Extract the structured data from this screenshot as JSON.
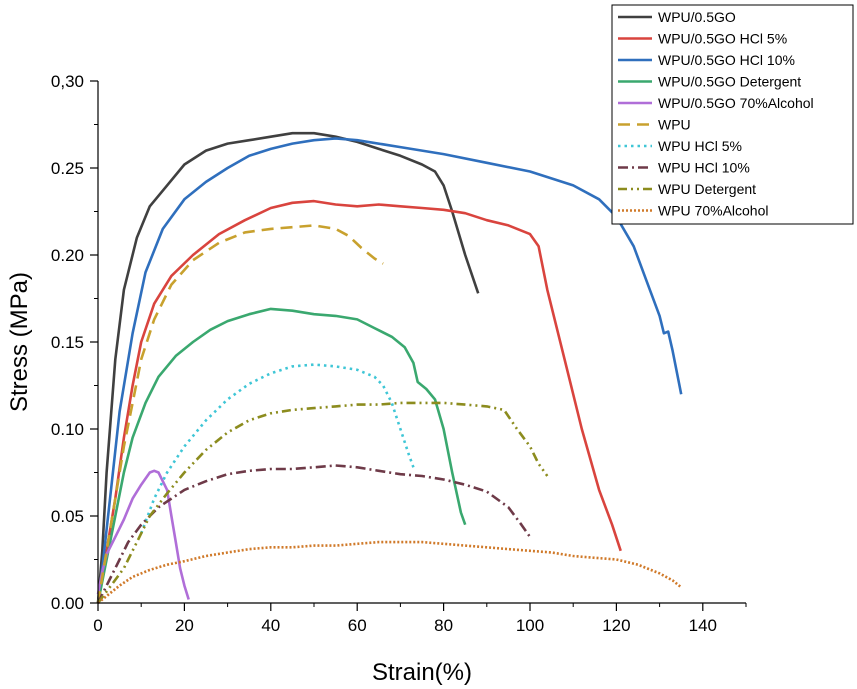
{
  "chart_data": {
    "type": "line",
    "xlabel": "Strain(%)",
    "ylabel": "Stress (MPa)",
    "xlim": [
      0,
      150
    ],
    "ylim": [
      0,
      0.3
    ],
    "xticks": [
      {
        "value": 0,
        "label": "0"
      },
      {
        "value": 20,
        "label": "20"
      },
      {
        "value": 40,
        "label": "40"
      },
      {
        "value": 60,
        "label": "60"
      },
      {
        "value": 80,
        "label": "80"
      },
      {
        "value": 100,
        "label": "100"
      },
      {
        "value": 120,
        "label": "120"
      },
      {
        "value": 140,
        "label": "140"
      }
    ],
    "yticks": [
      {
        "value": 0,
        "label": "0.00"
      },
      {
        "value": 0.05,
        "label": "0.05"
      },
      {
        "value": 0.1,
        "label": "0.10"
      },
      {
        "value": 0.15,
        "label": "0.15"
      },
      {
        "value": 0.2,
        "label": "0.20"
      },
      {
        "value": 0.25,
        "label": "0.25"
      },
      {
        "value": 0.3,
        "label": "0,30"
      }
    ],
    "grid": false,
    "legend_position": "top-right",
    "series": [
      {
        "name": "WPU/0.5GO",
        "color": "#404040",
        "dash": "solid",
        "points": [
          [
            0,
            0
          ],
          [
            1,
            0.03
          ],
          [
            2,
            0.075
          ],
          [
            4,
            0.14
          ],
          [
            6,
            0.18
          ],
          [
            9,
            0.21
          ],
          [
            12,
            0.228
          ],
          [
            16,
            0.24
          ],
          [
            20,
            0.252
          ],
          [
            25,
            0.26
          ],
          [
            30,
            0.264
          ],
          [
            35,
            0.266
          ],
          [
            40,
            0.268
          ],
          [
            45,
            0.27
          ],
          [
            50,
            0.27
          ],
          [
            55,
            0.268
          ],
          [
            60,
            0.265
          ],
          [
            65,
            0.261
          ],
          [
            70,
            0.257
          ],
          [
            75,
            0.252
          ],
          [
            78,
            0.248
          ],
          [
            80,
            0.24
          ],
          [
            82,
            0.225
          ],
          [
            85,
            0.2
          ],
          [
            88,
            0.178
          ]
        ]
      },
      {
        "name": "WPU/0.5GO HCl 5%",
        "color": "#d9443e",
        "dash": "solid",
        "points": [
          [
            0,
            0
          ],
          [
            2,
            0.03
          ],
          [
            4,
            0.06
          ],
          [
            6,
            0.095
          ],
          [
            8,
            0.125
          ],
          [
            10,
            0.15
          ],
          [
            13,
            0.172
          ],
          [
            17,
            0.188
          ],
          [
            22,
            0.2
          ],
          [
            28,
            0.212
          ],
          [
            34,
            0.22
          ],
          [
            40,
            0.227
          ],
          [
            45,
            0.23
          ],
          [
            50,
            0.231
          ],
          [
            55,
            0.229
          ],
          [
            60,
            0.228
          ],
          [
            65,
            0.229
          ],
          [
            70,
            0.228
          ],
          [
            75,
            0.227
          ],
          [
            80,
            0.226
          ],
          [
            85,
            0.224
          ],
          [
            90,
            0.22
          ],
          [
            95,
            0.217
          ],
          [
            100,
            0.212
          ],
          [
            102,
            0.205
          ],
          [
            104,
            0.18
          ],
          [
            108,
            0.14
          ],
          [
            112,
            0.1
          ],
          [
            116,
            0.065
          ],
          [
            119,
            0.045
          ],
          [
            121,
            0.03
          ]
        ]
      },
      {
        "name": "WPU/0.5GO HCl 10%",
        "color": "#2f6fbd",
        "dash": "solid",
        "points": [
          [
            0,
            0
          ],
          [
            1,
            0.02
          ],
          [
            3,
            0.065
          ],
          [
            5,
            0.11
          ],
          [
            8,
            0.155
          ],
          [
            11,
            0.19
          ],
          [
            15,
            0.215
          ],
          [
            20,
            0.232
          ],
          [
            25,
            0.242
          ],
          [
            30,
            0.25
          ],
          [
            35,
            0.257
          ],
          [
            40,
            0.261
          ],
          [
            45,
            0.264
          ],
          [
            50,
            0.266
          ],
          [
            55,
            0.267
          ],
          [
            60,
            0.266
          ],
          [
            70,
            0.262
          ],
          [
            80,
            0.258
          ],
          [
            90,
            0.253
          ],
          [
            100,
            0.248
          ],
          [
            110,
            0.24
          ],
          [
            116,
            0.232
          ],
          [
            120,
            0.222
          ],
          [
            124,
            0.205
          ],
          [
            127,
            0.185
          ],
          [
            130,
            0.165
          ],
          [
            131,
            0.155
          ],
          [
            132,
            0.156
          ],
          [
            133,
            0.145
          ],
          [
            135,
            0.12
          ]
        ]
      },
      {
        "name": "WPU/0.5GO Detergent",
        "color": "#3aa86f",
        "dash": "solid",
        "points": [
          [
            0,
            0
          ],
          [
            2,
            0.025
          ],
          [
            4,
            0.05
          ],
          [
            6,
            0.075
          ],
          [
            8,
            0.095
          ],
          [
            11,
            0.115
          ],
          [
            14,
            0.13
          ],
          [
            18,
            0.142
          ],
          [
            22,
            0.15
          ],
          [
            26,
            0.157
          ],
          [
            30,
            0.162
          ],
          [
            35,
            0.166
          ],
          [
            40,
            0.169
          ],
          [
            45,
            0.168
          ],
          [
            50,
            0.166
          ],
          [
            55,
            0.165
          ],
          [
            60,
            0.163
          ],
          [
            64,
            0.158
          ],
          [
            68,
            0.153
          ],
          [
            71,
            0.147
          ],
          [
            73,
            0.138
          ],
          [
            74,
            0.127
          ],
          [
            76,
            0.123
          ],
          [
            78,
            0.117
          ],
          [
            80,
            0.1
          ],
          [
            82,
            0.075
          ],
          [
            84,
            0.052
          ],
          [
            85,
            0.045
          ]
        ]
      },
      {
        "name": "WPU/0.5GO 70%Alcohol",
        "color": "#b06ed8",
        "dash": "solid",
        "points": [
          [
            0,
            0.005
          ],
          [
            1,
            0.018
          ],
          [
            2,
            0.028
          ],
          [
            4,
            0.038
          ],
          [
            6,
            0.048
          ],
          [
            8,
            0.06
          ],
          [
            10,
            0.068
          ],
          [
            12,
            0.075
          ],
          [
            13,
            0.076
          ],
          [
            14,
            0.075
          ],
          [
            16,
            0.065
          ],
          [
            17,
            0.05
          ],
          [
            18,
            0.035
          ],
          [
            19,
            0.02
          ],
          [
            20,
            0.01
          ],
          [
            21,
            0.002
          ]
        ]
      },
      {
        "name": "WPU",
        "color": "#c8a12e",
        "dash": "long",
        "points": [
          [
            0,
            0
          ],
          [
            2,
            0.03
          ],
          [
            4,
            0.06
          ],
          [
            6,
            0.09
          ],
          [
            8,
            0.115
          ],
          [
            10,
            0.14
          ],
          [
            13,
            0.163
          ],
          [
            17,
            0.183
          ],
          [
            22,
            0.197
          ],
          [
            28,
            0.207
          ],
          [
            34,
            0.213
          ],
          [
            40,
            0.215
          ],
          [
            45,
            0.216
          ],
          [
            50,
            0.217
          ],
          [
            55,
            0.215
          ],
          [
            58,
            0.211
          ],
          [
            61,
            0.204
          ],
          [
            64,
            0.198
          ],
          [
            66,
            0.195
          ]
        ]
      },
      {
        "name": "WPU HCl 5%",
        "color": "#3fc6d6",
        "dash": "dot",
        "points": [
          [
            10,
            0.04
          ],
          [
            13,
            0.06
          ],
          [
            16,
            0.075
          ],
          [
            20,
            0.09
          ],
          [
            25,
            0.105
          ],
          [
            30,
            0.117
          ],
          [
            35,
            0.126
          ],
          [
            40,
            0.132
          ],
          [
            45,
            0.136
          ],
          [
            50,
            0.137
          ],
          [
            55,
            0.136
          ],
          [
            60,
            0.134
          ],
          [
            64,
            0.13
          ],
          [
            66,
            0.125
          ],
          [
            68,
            0.115
          ],
          [
            70,
            0.1
          ],
          [
            72,
            0.085
          ],
          [
            73,
            0.078
          ]
        ]
      },
      {
        "name": "WPU HCl 10%",
        "color": "#6e3a48",
        "dash": "dashdot",
        "points": [
          [
            0,
            0
          ],
          [
            2,
            0.01
          ],
          [
            4,
            0.02
          ],
          [
            7,
            0.035
          ],
          [
            10,
            0.045
          ],
          [
            14,
            0.055
          ],
          [
            20,
            0.065
          ],
          [
            25,
            0.07
          ],
          [
            30,
            0.074
          ],
          [
            35,
            0.076
          ],
          [
            40,
            0.077
          ],
          [
            45,
            0.077
          ],
          [
            50,
            0.078
          ],
          [
            55,
            0.079
          ],
          [
            60,
            0.078
          ],
          [
            65,
            0.076
          ],
          [
            70,
            0.074
          ],
          [
            75,
            0.073
          ],
          [
            80,
            0.071
          ],
          [
            85,
            0.068
          ],
          [
            90,
            0.064
          ],
          [
            95,
            0.055
          ],
          [
            98,
            0.045
          ],
          [
            100,
            0.038
          ]
        ]
      },
      {
        "name": "WPU Detergent",
        "color": "#8c8c1e",
        "dash": "dashdotdot",
        "points": [
          [
            0,
            0
          ],
          [
            3,
            0.01
          ],
          [
            6,
            0.02
          ],
          [
            9,
            0.035
          ],
          [
            12,
            0.05
          ],
          [
            16,
            0.063
          ],
          [
            20,
            0.075
          ],
          [
            25,
            0.088
          ],
          [
            30,
            0.098
          ],
          [
            35,
            0.105
          ],
          [
            40,
            0.109
          ],
          [
            45,
            0.111
          ],
          [
            50,
            0.112
          ],
          [
            55,
            0.113
          ],
          [
            60,
            0.114
          ],
          [
            65,
            0.114
          ],
          [
            70,
            0.115
          ],
          [
            75,
            0.115
          ],
          [
            80,
            0.115
          ],
          [
            85,
            0.114
          ],
          [
            90,
            0.113
          ],
          [
            94,
            0.111
          ],
          [
            97,
            0.1
          ],
          [
            100,
            0.09
          ],
          [
            102,
            0.08
          ],
          [
            104,
            0.073
          ]
        ]
      },
      {
        "name": "WPU 70%Alcohol",
        "color": "#d07a2a",
        "dash": "shortdot",
        "points": [
          [
            0,
            0
          ],
          [
            2,
            0.004
          ],
          [
            5,
            0.01
          ],
          [
            8,
            0.015
          ],
          [
            12,
            0.019
          ],
          [
            16,
            0.022
          ],
          [
            20,
            0.024
          ],
          [
            25,
            0.027
          ],
          [
            30,
            0.029
          ],
          [
            35,
            0.031
          ],
          [
            40,
            0.032
          ],
          [
            45,
            0.032
          ],
          [
            50,
            0.033
          ],
          [
            55,
            0.033
          ],
          [
            60,
            0.034
          ],
          [
            65,
            0.035
          ],
          [
            70,
            0.035
          ],
          [
            75,
            0.035
          ],
          [
            80,
            0.034
          ],
          [
            85,
            0.033
          ],
          [
            90,
            0.032
          ],
          [
            95,
            0.031
          ],
          [
            100,
            0.03
          ],
          [
            105,
            0.029
          ],
          [
            110,
            0.027
          ],
          [
            115,
            0.026
          ],
          [
            120,
            0.025
          ],
          [
            125,
            0.022
          ],
          [
            130,
            0.017
          ],
          [
            133,
            0.013
          ],
          [
            135,
            0.009
          ]
        ]
      }
    ]
  }
}
